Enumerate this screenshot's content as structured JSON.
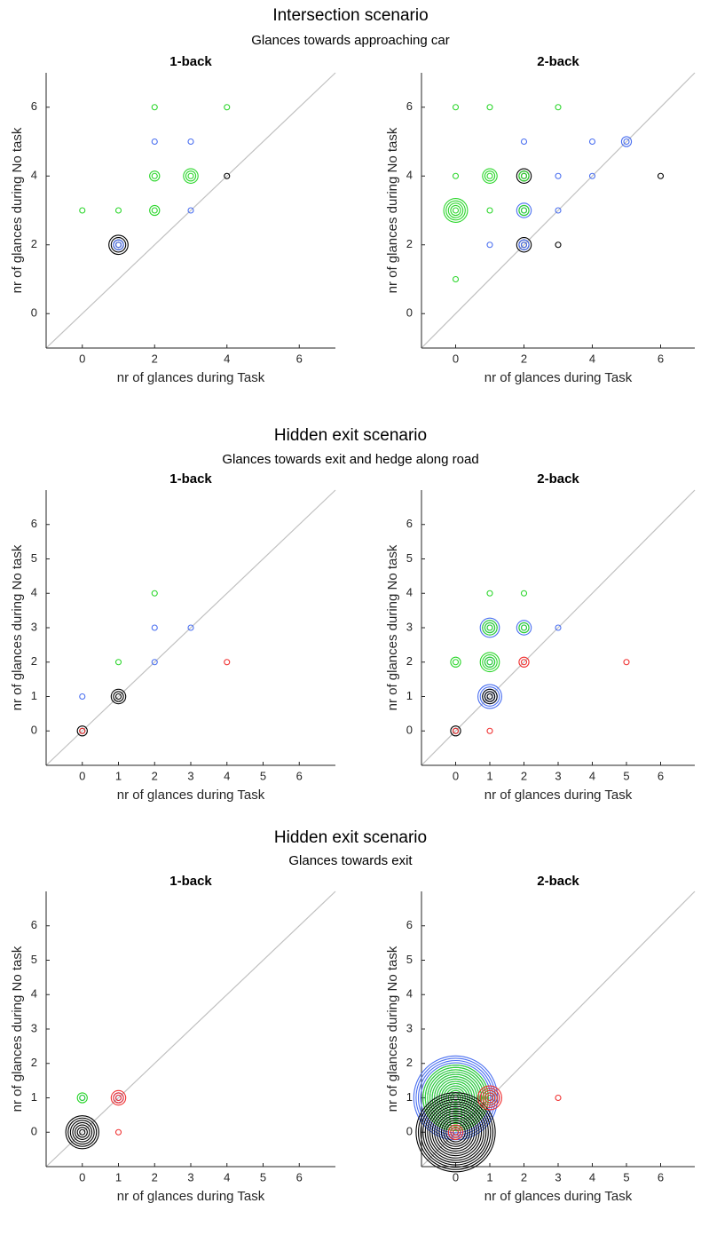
{
  "sections": [
    {
      "title": "Intersection scenario",
      "subtitle": "Glances towards approaching car"
    },
    {
      "title": "Hidden exit scenario",
      "subtitle": "Glances towards exit and hedge along road"
    },
    {
      "title": "Hidden exit scenario",
      "subtitle": "Glances towards exit"
    }
  ],
  "chart_data": [
    {
      "type": "scatter",
      "title": "1-back",
      "xlabel": "nr of glances during Task",
      "ylabel": "nr of glances during No task",
      "xlim": [
        -1,
        7
      ],
      "ylim": [
        -1,
        7
      ],
      "xticks": [
        0,
        2,
        4,
        6
      ],
      "yticks": [
        0,
        2,
        4,
        6
      ],
      "diagonal": true,
      "series": [
        {
          "color": "#000000",
          "x": [
            4,
            1
          ],
          "values": [
            4,
            2
          ],
          "sizes": [
            1,
            4
          ]
        },
        {
          "color": "#4a6ff0",
          "x": [
            2,
            3,
            3,
            1
          ],
          "values": [
            5,
            5,
            3,
            2
          ],
          "sizes": [
            1,
            1,
            1,
            2
          ]
        },
        {
          "color": "#2bd62b",
          "x": [
            0,
            1,
            2,
            4,
            2,
            2,
            3
          ],
          "values": [
            3,
            3,
            6,
            6,
            4,
            3,
            4
          ],
          "sizes": [
            1,
            1,
            1,
            1,
            2,
            2,
            3
          ]
        }
      ]
    },
    {
      "type": "scatter",
      "title": "2-back",
      "xlabel": "nr of glances during Task",
      "ylabel": "nr of glances during No task",
      "xlim": [
        -1,
        7
      ],
      "ylim": [
        -1,
        7
      ],
      "xticks": [
        0,
        2,
        4,
        6
      ],
      "yticks": [
        0,
        2,
        4,
        6
      ],
      "diagonal": true,
      "series": [
        {
          "color": "#000000",
          "x": [
            6,
            2,
            3,
            2
          ],
          "values": [
            4,
            4,
            2,
            2
          ],
          "sizes": [
            1,
            3,
            1,
            3
          ]
        },
        {
          "color": "#4a6ff0",
          "x": [
            2,
            4,
            5,
            3,
            4,
            2,
            1,
            3,
            2
          ],
          "values": [
            5,
            5,
            5,
            4,
            4,
            3,
            2,
            3,
            2
          ],
          "sizes": [
            1,
            1,
            2,
            1,
            1,
            3,
            1,
            1,
            2
          ]
        },
        {
          "color": "#2bd62b",
          "x": [
            0,
            1,
            3,
            0,
            1,
            0,
            1,
            0,
            2,
            2
          ],
          "values": [
            6,
            6,
            6,
            4,
            4,
            3,
            3,
            1,
            4,
            3
          ],
          "sizes": [
            1,
            1,
            1,
            1,
            3,
            5,
            1,
            1,
            2,
            2
          ]
        }
      ]
    },
    {
      "type": "scatter",
      "title": "1-back",
      "xlabel": "nr of glances during Task",
      "ylabel": "nr of glances during No task",
      "xlim": [
        -1,
        7
      ],
      "ylim": [
        -1,
        7
      ],
      "xticks": [
        0,
        1,
        2,
        3,
        4,
        5,
        6
      ],
      "yticks": [
        0,
        1,
        2,
        3,
        4,
        5,
        6
      ],
      "diagonal": true,
      "series": [
        {
          "color": "#000000",
          "x": [
            1,
            0
          ],
          "values": [
            1,
            0
          ],
          "sizes": [
            3,
            2
          ]
        },
        {
          "color": "#4a6ff0",
          "x": [
            0,
            2,
            3,
            2
          ],
          "values": [
            1,
            3,
            3,
            2
          ],
          "sizes": [
            1,
            1,
            1,
            1
          ]
        },
        {
          "color": "#2bd62b",
          "x": [
            2,
            1
          ],
          "values": [
            4,
            2
          ],
          "sizes": [
            1,
            1
          ]
        },
        {
          "color": "#f03030",
          "x": [
            4,
            0
          ],
          "values": [
            2,
            0
          ],
          "sizes": [
            1,
            1
          ]
        }
      ]
    },
    {
      "type": "scatter",
      "title": "2-back",
      "xlabel": "nr of glances during Task",
      "ylabel": "nr of glances during No task",
      "xlim": [
        -1,
        7
      ],
      "ylim": [
        -1,
        7
      ],
      "xticks": [
        0,
        1,
        2,
        3,
        4,
        5,
        6
      ],
      "yticks": [
        0,
        1,
        2,
        3,
        4,
        5,
        6
      ],
      "diagonal": true,
      "series": [
        {
          "color": "#4a6ff0",
          "x": [
            3,
            1,
            2,
            1,
            1
          ],
          "values": [
            3,
            3,
            3,
            2,
            1
          ],
          "sizes": [
            1,
            4,
            3,
            2,
            5
          ]
        },
        {
          "color": "#000000",
          "x": [
            1,
            0
          ],
          "values": [
            1,
            0
          ],
          "sizes": [
            3,
            2
          ]
        },
        {
          "color": "#2bd62b",
          "x": [
            1,
            2,
            0,
            1,
            1,
            2
          ],
          "values": [
            4,
            4,
            2,
            3,
            2,
            3
          ],
          "sizes": [
            1,
            1,
            2,
            3,
            4,
            2
          ]
        },
        {
          "color": "#f03030",
          "x": [
            2,
            1,
            5,
            0
          ],
          "values": [
            2,
            0,
            2,
            0
          ],
          "sizes": [
            2,
            1,
            1,
            1
          ]
        }
      ]
    },
    {
      "type": "scatter",
      "title": "1-back",
      "xlabel": "nr of glances during Task",
      "ylabel": "nr of glances during No task",
      "xlim": [
        -1,
        7
      ],
      "ylim": [
        -1,
        7
      ],
      "xticks": [
        0,
        1,
        2,
        3,
        4,
        5,
        6
      ],
      "yticks": [
        0,
        1,
        2,
        3,
        4,
        5,
        6
      ],
      "diagonal": true,
      "series": [
        {
          "color": "#000000",
          "x": [
            0
          ],
          "values": [
            0
          ],
          "sizes": [
            7
          ]
        },
        {
          "color": "#4a6ff0",
          "x": [
            0,
            1
          ],
          "values": [
            1,
            1
          ],
          "sizes": [
            1,
            2
          ]
        },
        {
          "color": "#2bd62b",
          "x": [
            0
          ],
          "values": [
            1
          ],
          "sizes": [
            2
          ]
        },
        {
          "color": "#f03030",
          "x": [
            1,
            1
          ],
          "values": [
            1,
            0
          ],
          "sizes": [
            3,
            1
          ]
        }
      ]
    },
    {
      "type": "scatter",
      "title": "2-back",
      "xlabel": "nr of glances during Task",
      "ylabel": "nr of glances during No task",
      "xlim": [
        -1,
        7
      ],
      "ylim": [
        -1,
        7
      ],
      "xticks": [
        0,
        1,
        2,
        3,
        4,
        5,
        6
      ],
      "yticks": [
        0,
        1,
        2,
        3,
        4,
        5,
        6
      ],
      "diagonal": true,
      "series": [
        {
          "color": "#4a6ff0",
          "x": [
            0,
            1
          ],
          "values": [
            1,
            1
          ],
          "sizes": [
            18,
            4
          ]
        },
        {
          "color": "#2bd62b",
          "x": [
            0,
            1
          ],
          "values": [
            1,
            1
          ],
          "sizes": [
            14,
            3
          ]
        },
        {
          "color": "#000000",
          "x": [
            0
          ],
          "values": [
            0
          ],
          "sizes": [
            17
          ]
        },
        {
          "color": "#f03030",
          "x": [
            0,
            1,
            3
          ],
          "values": [
            0,
            1,
            1
          ],
          "sizes": [
            3,
            5,
            1
          ]
        }
      ]
    }
  ]
}
